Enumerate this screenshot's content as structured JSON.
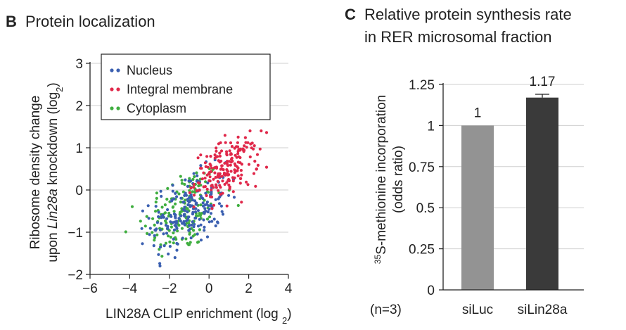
{
  "panels": [
    {
      "letter": "B",
      "title": "Protein localization"
    },
    {
      "letter": "C",
      "title_line1": "Relative protein synthesis rate",
      "title_line2": "in RER microsomal fraction"
    }
  ],
  "chart_data": [
    {
      "type": "scatter",
      "xlabel": "LIN28A CLIP enrichment (log2)",
      "ylabel": "Ribosome density change upon Lin28a knockdown (log2)",
      "ylabel_line1": "Ribosome density change",
      "ylabel_line2_prefix": "upon ",
      "ylabel_line2_italic": "Lin28a",
      "ylabel_line2_suffix": " knockdown (log",
      "xlim": [
        -6,
        4
      ],
      "ylim": [
        -2,
        3
      ],
      "xticks": [
        -6,
        -4,
        -2,
        0,
        2,
        4
      ],
      "yticks": [
        -2,
        -1,
        0,
        1,
        2,
        3
      ],
      "xtick_labels": [
        "−6",
        "−4",
        "−2",
        "0",
        "2",
        "4"
      ],
      "ytick_labels": [
        "−2",
        "−1",
        "0",
        "1",
        "2",
        "3"
      ],
      "grid": "horizontal",
      "legend_position": "top-left",
      "series": [
        {
          "name": "Nucleus",
          "color": "#3a5fb0",
          "x_center": -1.0,
          "y_center": -0.5,
          "x_sd": 0.95,
          "y_sd": 0.42,
          "count": 200
        },
        {
          "name": "Integral membrane",
          "color": "#e0284a",
          "x_center": 0.9,
          "y_center": 0.5,
          "x_sd": 0.8,
          "y_sd": 0.32,
          "count": 200
        },
        {
          "name": "Cytoplasm",
          "color": "#3fae3f",
          "x_center": -1.3,
          "y_center": -0.5,
          "x_sd": 1.0,
          "y_sd": 0.5,
          "count": 170
        }
      ]
    },
    {
      "type": "bar",
      "categories": [
        "siLuc",
        "siLin28a"
      ],
      "values": [
        1,
        1.17
      ],
      "value_labels": [
        "1",
        "1.17"
      ],
      "error": [
        0,
        0.02
      ],
      "colors": [
        "#939393",
        "#3a3a3a"
      ],
      "ylabel": "35S-methionine incorporation (odds ratio)",
      "ylabel_sup": "35",
      "ylabel_line1_rest": "S-methionine incorporation",
      "ylabel_line2": "(odds ratio)",
      "ylim": [
        0,
        1.25
      ],
      "yticks": [
        0,
        0.25,
        0.5,
        0.75,
        1,
        1.25
      ],
      "ytick_labels": [
        "0",
        "0.25",
        "0.5",
        "0.75",
        "1",
        "1.25"
      ],
      "grid": "horizontal",
      "note": "(n=3)"
    }
  ]
}
